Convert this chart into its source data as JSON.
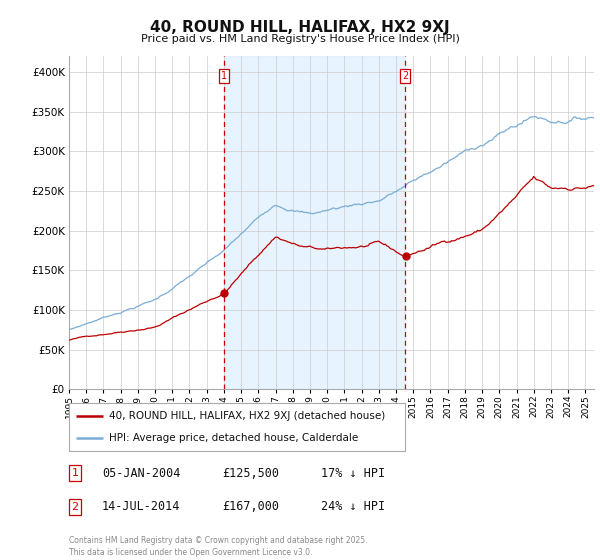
{
  "title": "40, ROUND HILL, HALIFAX, HX2 9XJ",
  "subtitle": "Price paid vs. HM Land Registry's House Price Index (HPI)",
  "property_label": "40, ROUND HILL, HALIFAX, HX2 9XJ (detached house)",
  "hpi_label": "HPI: Average price, detached house, Calderdale",
  "property_color": "#bb0000",
  "hpi_color": "#7aadd6",
  "hpi_fill_color": "#ddeeff",
  "vline_color": "#cc0000",
  "background_color": "#ffffff",
  "grid_color": "#cccccc",
  "purchase1_date": "05-JAN-2004",
  "purchase1_price": 125500,
  "purchase1_note": "17% ↓ HPI",
  "purchase1_x": 2004.02,
  "purchase2_date": "14-JUL-2014",
  "purchase2_price": 167000,
  "purchase2_note": "24% ↓ HPI",
  "purchase2_x": 2014.54,
  "xmin": 1995,
  "xmax": 2025.5,
  "ymin": 0,
  "ymax": 420000,
  "yticks": [
    0,
    50000,
    100000,
    150000,
    200000,
    250000,
    300000,
    350000,
    400000
  ],
  "footer": "Contains HM Land Registry data © Crown copyright and database right 2025.\nThis data is licensed under the Open Government Licence v3.0."
}
